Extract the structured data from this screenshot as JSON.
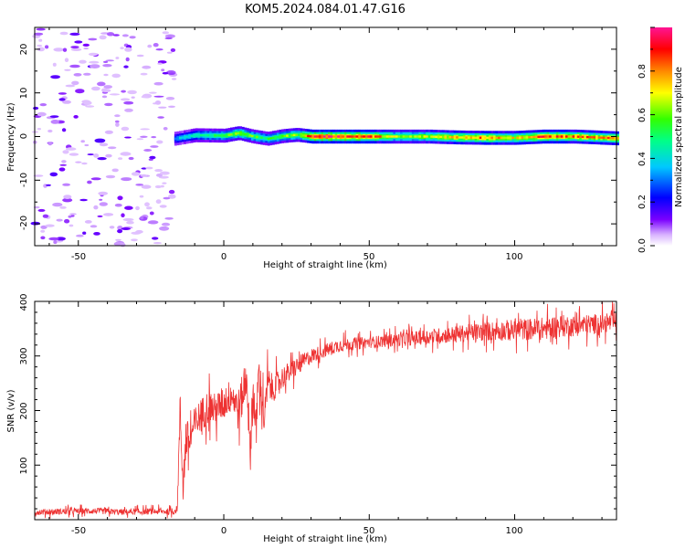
{
  "chart_data": [
    {
      "type": "heatmap",
      "title": "KOM5.2024.084.01.47.G16",
      "xlabel": "Height of straight line (km)",
      "ylabel": "Frequency (Hz)",
      "xlim": [
        -65,
        135
      ],
      "ylim": [
        -25,
        25
      ],
      "xticks": [
        "-50",
        "0",
        "50",
        "100"
      ],
      "yticks": [
        "20",
        "10",
        "0",
        "-10",
        "-20"
      ],
      "colorbar": {
        "label": "Normalized spectral amplitude",
        "range": [
          0,
          1
        ],
        "ticks": [
          "0.0",
          "0.2",
          "0.4",
          "0.6",
          "0.8"
        ],
        "colors": [
          "#ffffff",
          "#d9b3ff",
          "#7a00ff",
          "#0000ff",
          "#00c8ff",
          "#00ff88",
          "#33ff00",
          "#ffff00",
          "#ff8800",
          "#ff0000",
          "#ff1493"
        ]
      },
      "noise_region_x": [
        -65,
        -17
      ],
      "signal_start_x": -17,
      "ridge": {
        "x": [
          -17,
          -10,
          0,
          5,
          10,
          15,
          20,
          25,
          30,
          40,
          50,
          60,
          70,
          80,
          90,
          100,
          110,
          120,
          135
        ],
        "center_hz": [
          -0.5,
          0.3,
          0.2,
          0.8,
          0.0,
          -0.5,
          0.1,
          0.4,
          0.0,
          0.0,
          0.0,
          0.0,
          0.0,
          -0.2,
          -0.3,
          -0.3,
          0.0,
          0.0,
          -0.4
        ],
        "amplitude": [
          0.35,
          0.45,
          0.55,
          0.65,
          0.55,
          0.5,
          0.6,
          0.6,
          0.9,
          0.9,
          0.85,
          0.6,
          0.65,
          0.75,
          0.8,
          0.7,
          0.85,
          0.8,
          0.75
        ]
      }
    },
    {
      "type": "line",
      "title": "",
      "xlabel": "Height of straight line (km)",
      "ylabel": "SNR (v/v)",
      "xlim": [
        -65,
        135
      ],
      "ylim": [
        0,
        400
      ],
      "xticks": [
        "-50",
        "0",
        "50",
        "100"
      ],
      "yticks": [
        "100",
        "200",
        "300",
        "400"
      ],
      "color": "#ee3333",
      "series": [
        {
          "x": [
            -65,
            -55,
            -45,
            -35,
            -25,
            -17,
            -16,
            -15,
            -14,
            -13,
            -12,
            -10,
            -8,
            -5,
            -3,
            0,
            3,
            5,
            7,
            8,
            9,
            10,
            11,
            12,
            13,
            14,
            15,
            17,
            20,
            25,
            30,
            35,
            40,
            50,
            60,
            70,
            80,
            90,
            100,
            110,
            115,
            120,
            135
          ],
          "values": [
            14,
            15,
            16,
            14,
            15,
            15,
            20,
            200,
            60,
            150,
            140,
            175,
            190,
            210,
            200,
            215,
            230,
            200,
            240,
            270,
            110,
            250,
            160,
            270,
            230,
            180,
            250,
            240,
            260,
            280,
            300,
            310,
            320,
            325,
            330,
            335,
            340,
            345,
            348,
            350,
            355,
            355,
            362
          ],
          "noise": [
            8,
            8,
            8,
            8,
            8,
            8,
            10,
            60,
            40,
            60,
            50,
            45,
            45,
            45,
            45,
            45,
            45,
            55,
            55,
            60,
            60,
            55,
            55,
            50,
            50,
            50,
            45,
            35,
            30,
            25,
            20,
            18,
            18,
            15,
            18,
            20,
            22,
            25,
            28,
            30,
            30,
            28,
            25
          ]
        }
      ]
    }
  ]
}
